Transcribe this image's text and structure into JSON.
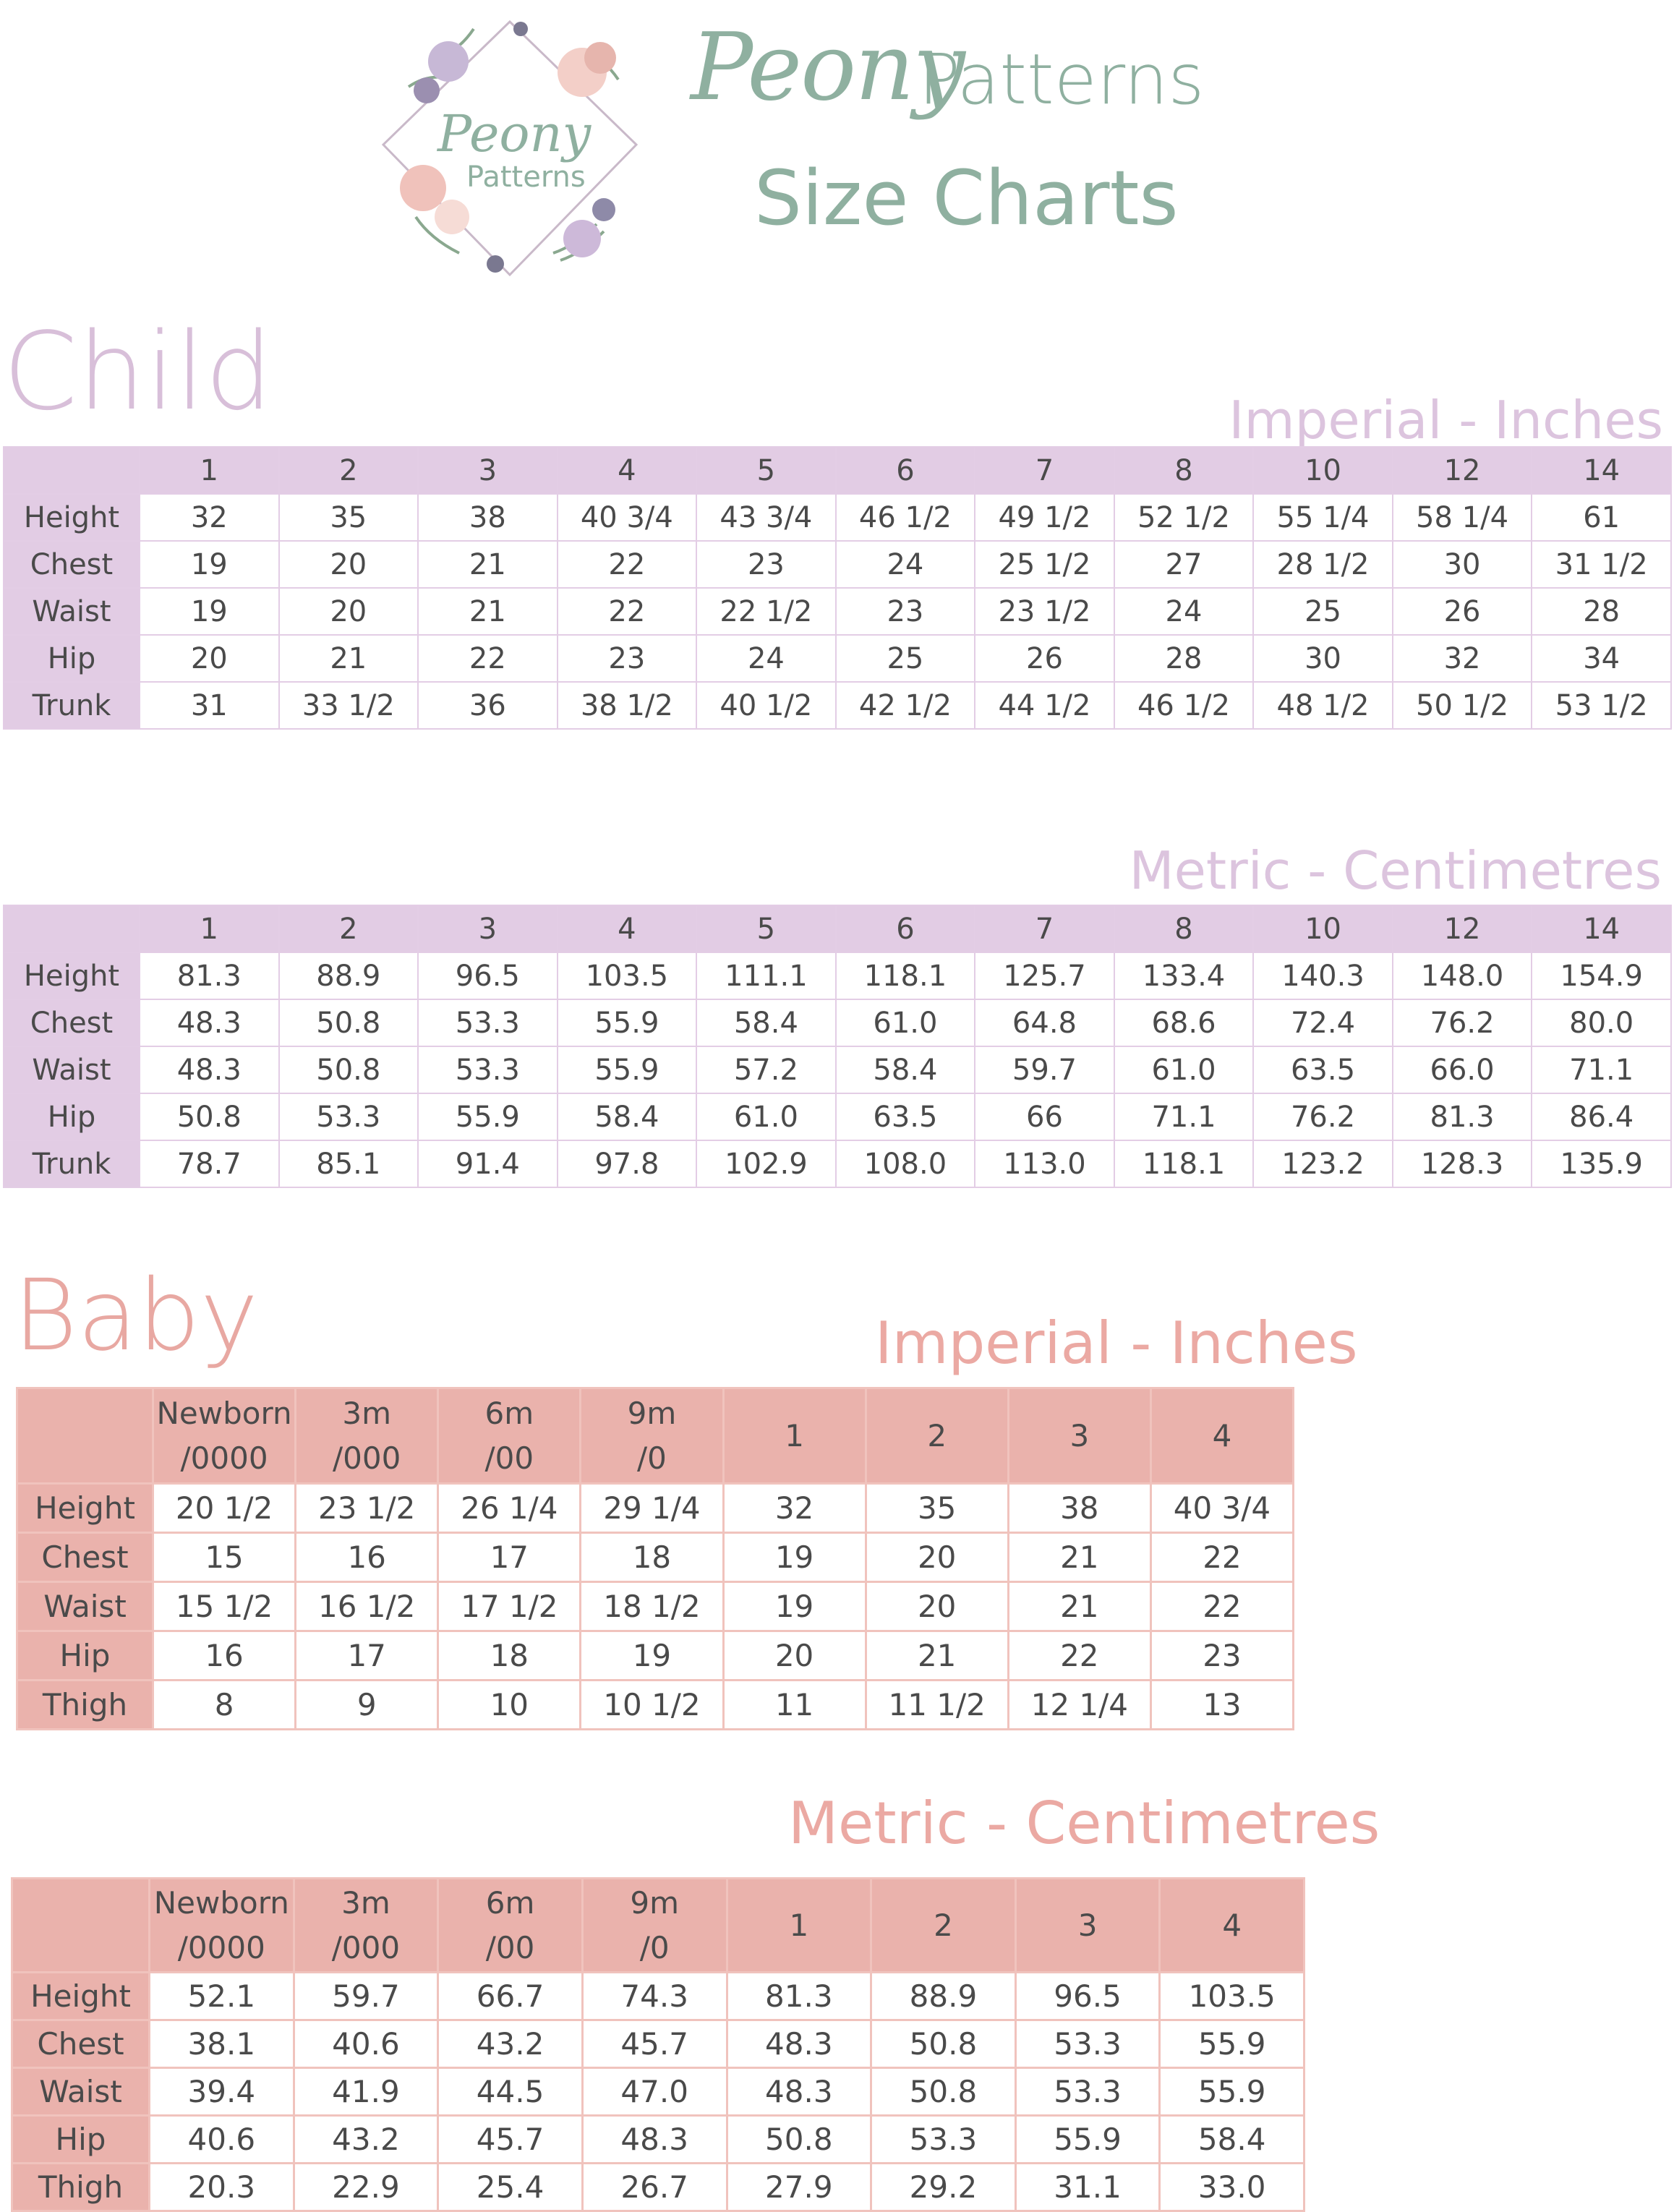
{
  "brand": {
    "script": "Peony",
    "word": "Patterns",
    "subtitle": "Size Charts",
    "logo_text_1": "Peony",
    "logo_text_2": "Patterns"
  },
  "colors": {
    "sage": "#8fb0a0",
    "lavender": "#e2cce4",
    "rose": "#eab2ac"
  },
  "child": {
    "title": "Child",
    "imperial": {
      "label": "Imperial - Inches",
      "sizes": [
        "1",
        "2",
        "3",
        "4",
        "5",
        "6",
        "7",
        "8",
        "10",
        "12",
        "14"
      ],
      "rows": [
        {
          "name": "Height",
          "values": [
            "32",
            "35",
            "38",
            "40 3/4",
            "43 3/4",
            "46 1/2",
            "49 1/2",
            "52 1/2",
            "55 1/4",
            "58 1/4",
            "61"
          ]
        },
        {
          "name": "Chest",
          "values": [
            "19",
            "20",
            "21",
            "22",
            "23",
            "24",
            "25 1/2",
            "27",
            "28 1/2",
            "30",
            "31 1/2"
          ]
        },
        {
          "name": "Waist",
          "values": [
            "19",
            "20",
            "21",
            "22",
            "22 1/2",
            "23",
            "23 1/2",
            "24",
            "25",
            "26",
            "28"
          ]
        },
        {
          "name": "Hip",
          "values": [
            "20",
            "21",
            "22",
            "23",
            "24",
            "25",
            "26",
            "28",
            "30",
            "32",
            "34"
          ]
        },
        {
          "name": "Trunk",
          "values": [
            "31",
            "33 1/2",
            "36",
            "38 1/2",
            "40 1/2",
            "42 1/2",
            "44 1/2",
            "46 1/2",
            "48 1/2",
            "50 1/2",
            "53 1/2"
          ]
        }
      ]
    },
    "metric": {
      "label": "Metric - Centimetres",
      "sizes": [
        "1",
        "2",
        "3",
        "4",
        "5",
        "6",
        "7",
        "8",
        "10",
        "12",
        "14"
      ],
      "rows": [
        {
          "name": "Height",
          "values": [
            "81.3",
            "88.9",
            "96.5",
            "103.5",
            "111.1",
            "118.1",
            "125.7",
            "133.4",
            "140.3",
            "148.0",
            "154.9"
          ]
        },
        {
          "name": "Chest",
          "values": [
            "48.3",
            "50.8",
            "53.3",
            "55.9",
            "58.4",
            "61.0",
            "64.8",
            "68.6",
            "72.4",
            "76.2",
            "80.0"
          ]
        },
        {
          "name": "Waist",
          "values": [
            "48.3",
            "50.8",
            "53.3",
            "55.9",
            "57.2",
            "58.4",
            "59.7",
            "61.0",
            "63.5",
            "66.0",
            "71.1"
          ]
        },
        {
          "name": "Hip",
          "values": [
            "50.8",
            "53.3",
            "55.9",
            "58.4",
            "61.0",
            "63.5",
            "66",
            "71.1",
            "76.2",
            "81.3",
            "86.4"
          ]
        },
        {
          "name": "Trunk",
          "values": [
            "78.7",
            "85.1",
            "91.4",
            "97.8",
            "102.9",
            "108.0",
            "113.0",
            "118.1",
            "123.2",
            "128.3",
            "135.9"
          ]
        }
      ]
    }
  },
  "baby": {
    "title": "Baby",
    "imperial": {
      "label": "Imperial - Inches",
      "sizes": [
        [
          "Newborn",
          "/0000"
        ],
        [
          "3m",
          "/000"
        ],
        [
          "6m",
          "/00"
        ],
        [
          "9m",
          "/0"
        ],
        [
          "1",
          ""
        ],
        [
          "2",
          ""
        ],
        [
          "3",
          ""
        ],
        [
          "4",
          ""
        ]
      ],
      "rows": [
        {
          "name": "Height",
          "values": [
            "20 1/2",
            "23 1/2",
            "26 1/4",
            "29 1/4",
            "32",
            "35",
            "38",
            "40 3/4"
          ]
        },
        {
          "name": "Chest",
          "values": [
            "15",
            "16",
            "17",
            "18",
            "19",
            "20",
            "21",
            "22"
          ]
        },
        {
          "name": "Waist",
          "values": [
            "15 1/2",
            "16 1/2",
            "17 1/2",
            "18 1/2",
            "19",
            "20",
            "21",
            "22"
          ]
        },
        {
          "name": "Hip",
          "values": [
            "16",
            "17",
            "18",
            "19",
            "20",
            "21",
            "22",
            "23"
          ]
        },
        {
          "name": "Thigh",
          "values": [
            "8",
            "9",
            "10",
            "10 1/2",
            "11",
            "11 1/2",
            "12 1/4",
            "13"
          ]
        }
      ]
    },
    "metric": {
      "label": "Metric - Centimetres",
      "sizes": [
        [
          "Newborn",
          "/0000"
        ],
        [
          "3m",
          "/000"
        ],
        [
          "6m",
          "/00"
        ],
        [
          "9m",
          "/0"
        ],
        [
          "1",
          ""
        ],
        [
          "2",
          ""
        ],
        [
          "3",
          ""
        ],
        [
          "4",
          ""
        ]
      ],
      "rows": [
        {
          "name": "Height",
          "values": [
            "52.1",
            "59.7",
            "66.7",
            "74.3",
            "81.3",
            "88.9",
            "96.5",
            "103.5"
          ]
        },
        {
          "name": "Chest",
          "values": [
            "38.1",
            "40.6",
            "43.2",
            "45.7",
            "48.3",
            "50.8",
            "53.3",
            "55.9"
          ]
        },
        {
          "name": "Waist",
          "values": [
            "39.4",
            "41.9",
            "44.5",
            "47.0",
            "48.3",
            "50.8",
            "53.3",
            "55.9"
          ]
        },
        {
          "name": "Hip",
          "values": [
            "40.6",
            "43.2",
            "45.7",
            "48.3",
            "50.8",
            "53.3",
            "55.9",
            "58.4"
          ]
        },
        {
          "name": "Thigh",
          "values": [
            "20.3",
            "22.9",
            "25.4",
            "26.7",
            "27.9",
            "29.2",
            "31.1",
            "33.0"
          ]
        }
      ]
    }
  }
}
